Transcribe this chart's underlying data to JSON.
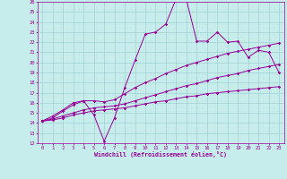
{
  "xlabel": "Windchill (Refroidissement éolien,°C)",
  "xlim": [
    -0.5,
    23.5
  ],
  "ylim": [
    12,
    26
  ],
  "xticks": [
    0,
    1,
    2,
    3,
    4,
    5,
    6,
    7,
    8,
    9,
    10,
    11,
    12,
    13,
    14,
    15,
    16,
    17,
    18,
    19,
    20,
    21,
    22,
    23
  ],
  "yticks": [
    12,
    13,
    14,
    15,
    16,
    17,
    18,
    19,
    20,
    21,
    22,
    23,
    24,
    25,
    26
  ],
  "bg_color": "#c6ecec",
  "line_color": "#990099",
  "grid_color": "#99cccc",
  "line1_y": [
    14.2,
    14.7,
    15.3,
    16.0,
    16.2,
    14.8,
    12.2,
    14.5,
    17.5,
    20.2,
    22.8,
    23.0,
    23.8,
    26.3,
    26.2,
    22.1,
    22.1,
    23.0,
    22.0,
    22.1,
    20.5,
    21.2,
    21.0,
    19.0
  ],
  "line2_y": [
    14.2,
    14.5,
    15.2,
    15.8,
    16.2,
    16.2,
    16.1,
    16.3,
    16.9,
    17.5,
    18.0,
    18.4,
    18.9,
    19.3,
    19.7,
    20.0,
    20.3,
    20.6,
    20.9,
    21.1,
    21.3,
    21.5,
    21.7,
    21.9
  ],
  "line3_y": [
    14.2,
    14.4,
    14.7,
    15.0,
    15.3,
    15.5,
    15.6,
    15.7,
    15.9,
    16.2,
    16.5,
    16.8,
    17.1,
    17.4,
    17.7,
    17.9,
    18.2,
    18.5,
    18.7,
    18.9,
    19.2,
    19.4,
    19.6,
    19.8
  ],
  "line4_y": [
    14.2,
    14.3,
    14.5,
    14.8,
    15.0,
    15.2,
    15.3,
    15.4,
    15.5,
    15.7,
    15.9,
    16.1,
    16.2,
    16.4,
    16.6,
    16.7,
    16.9,
    17.0,
    17.1,
    17.2,
    17.3,
    17.4,
    17.5,
    17.6
  ]
}
